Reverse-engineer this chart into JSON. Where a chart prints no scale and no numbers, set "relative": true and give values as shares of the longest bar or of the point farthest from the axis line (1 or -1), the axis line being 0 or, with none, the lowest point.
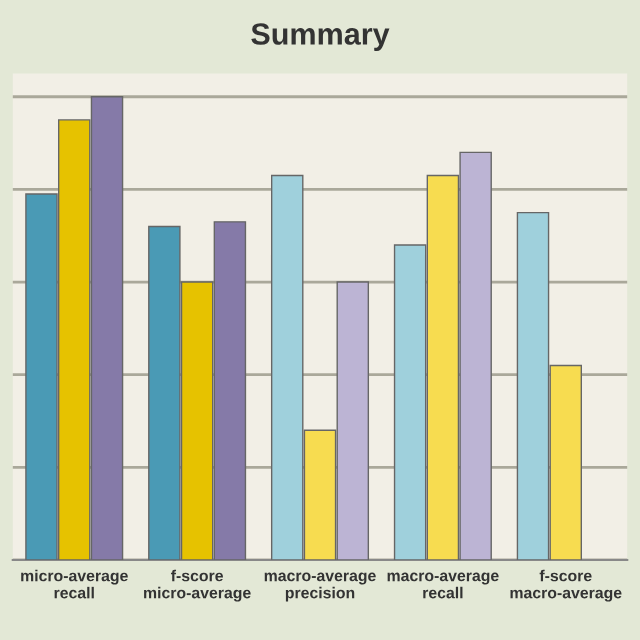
{
  "chart_data": {
    "type": "bar",
    "title": "Summary",
    "relative": true,
    "grid": "y",
    "categories": [
      "micro-average recall",
      "f-score micro-average",
      "macro-average precision",
      "macro-average recall",
      "f-score macro-average"
    ],
    "series": [
      {
        "colors": [
          "#4a9ab5",
          "#4a9ab5",
          "#9fd0dc",
          "#9fd0dc",
          "#9fd0dc"
        ],
        "values": [
          0.79,
          0.72,
          0.83,
          0.68,
          0.75
        ]
      },
      {
        "colors": [
          "#e6c200",
          "#e6c200",
          "#f7dc50",
          "#f7dc50",
          "#f7dc50"
        ],
        "values": [
          0.95,
          0.6,
          0.28,
          0.83,
          0.42
        ]
      },
      {
        "colors": [
          "#857aa8",
          "#857aa8",
          "#bcb4d4",
          "#bcb4d4",
          "#bcb4d4"
        ],
        "values": [
          1.0,
          0.73,
          0.6,
          0.88,
          null
        ]
      }
    ]
  }
}
